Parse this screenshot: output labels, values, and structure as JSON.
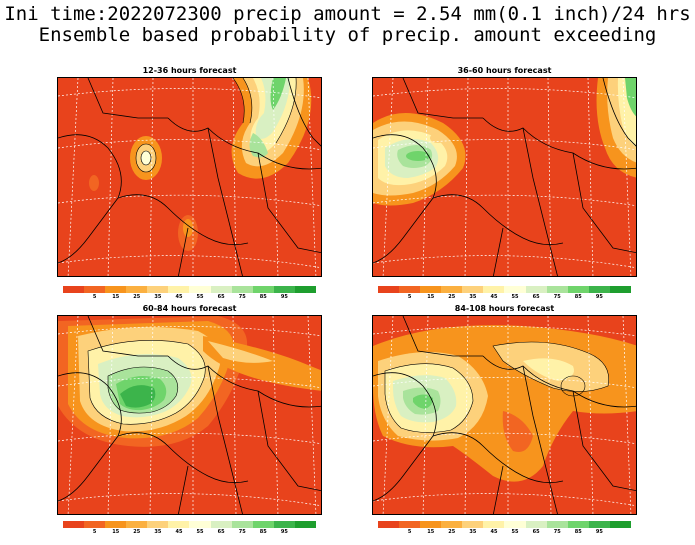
{
  "header": {
    "title_line1": "Ini time:2022072300 precip amount = 2.54 mm(0.1 inch)/24 hrs",
    "title_line2": "Ensemble based probability of precip. amount exceeding"
  },
  "panels": [
    {
      "title": "12-36 hours forecast"
    },
    {
      "title": "36-60 hours forecast"
    },
    {
      "title": "60-84 hours forecast"
    },
    {
      "title": "84-108 hours forecast"
    }
  ],
  "colorbar": {
    "colors": [
      "#e8431c",
      "#f26522",
      "#f7941d",
      "#fbb040",
      "#fdd17b",
      "#fff2a8",
      "#ffffd6",
      "#d9f0c2",
      "#a9e39b",
      "#6fd46b",
      "#3cb44b",
      "#1e9e2e"
    ],
    "labels": [
      "5",
      "15",
      "25",
      "35",
      "45",
      "55",
      "65",
      "75",
      "85",
      "95"
    ]
  },
  "colors": {
    "background_field": "#e8431c",
    "coast_lines": "#000000",
    "grid_lines": "#ffffff"
  }
}
